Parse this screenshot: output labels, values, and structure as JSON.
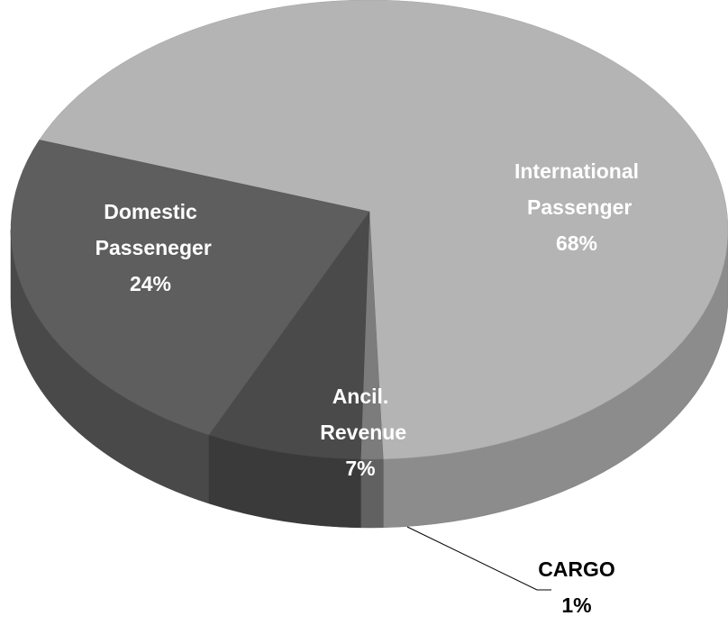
{
  "chart_data": {
    "type": "pie3d",
    "categories": [
      "International Passenger",
      "CARGO",
      "Ancil. Revenue",
      "Domestic Passeneger"
    ],
    "values": [
      68,
      1,
      7,
      24
    ],
    "value_labels": [
      "68%",
      "1%",
      "7%",
      "24%"
    ],
    "colors": [
      "#b4b4b4",
      "#7c7c7c",
      "#4a4a4a",
      "#5e5e5e"
    ]
  }
}
